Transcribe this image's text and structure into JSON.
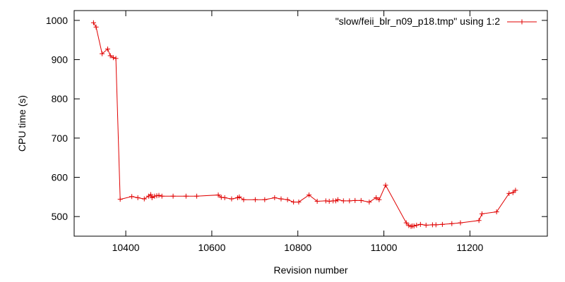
{
  "chart_data": {
    "type": "line",
    "xlabel": "Revision number",
    "ylabel": "CPU time (s)",
    "xlim": [
      10280,
      11380
    ],
    "ylim": [
      450,
      1025
    ],
    "xticks": [
      10400,
      10600,
      10800,
      11000,
      11200
    ],
    "yticks": [
      500,
      600,
      700,
      800,
      900,
      1000
    ],
    "grid": false,
    "legend_position": "top-right",
    "series": [
      {
        "name": "\"slow/feii_blr_n09_p18.tmp\" using 1:2",
        "color": "#e00000",
        "marker": "plus",
        "x": [
          10325,
          10331,
          10345,
          10358,
          10364,
          10371,
          10377,
          10387,
          10414,
          10428,
          10443,
          10453,
          10458,
          10461,
          10467,
          10472,
          10477,
          10484,
          10510,
          10540,
          10565,
          10615,
          10622,
          10630,
          10646,
          10660,
          10664,
          10674,
          10701,
          10723,
          10746,
          10761,
          10776,
          10790,
          10802,
          10826,
          10845,
          10865,
          10873,
          10882,
          10888,
          10893,
          10906,
          10920,
          10933,
          10947,
          10966,
          10982,
          10989,
          11004,
          11052,
          11058,
          11063,
          11066,
          11070,
          11076,
          11085,
          11098,
          11113,
          11121,
          11136,
          11158,
          11178,
          11221,
          11228,
          11262,
          11291,
          11300,
          11306
        ],
        "y": [
          994,
          983,
          915,
          927,
          910,
          905,
          903,
          544,
          551,
          548,
          545,
          552,
          556,
          548,
          552,
          553,
          554,
          552,
          552,
          552,
          552,
          555,
          549,
          548,
          545,
          548,
          550,
          543,
          543,
          543,
          548,
          545,
          543,
          537,
          537,
          555,
          539,
          540,
          539,
          540,
          540,
          543,
          540,
          540,
          541,
          541,
          537,
          548,
          543,
          580,
          484,
          477,
          475,
          476,
          476,
          478,
          480,
          478,
          479,
          479,
          480,
          482,
          484,
          490,
          507,
          512,
          559,
          561,
          567
        ]
      }
    ]
  }
}
